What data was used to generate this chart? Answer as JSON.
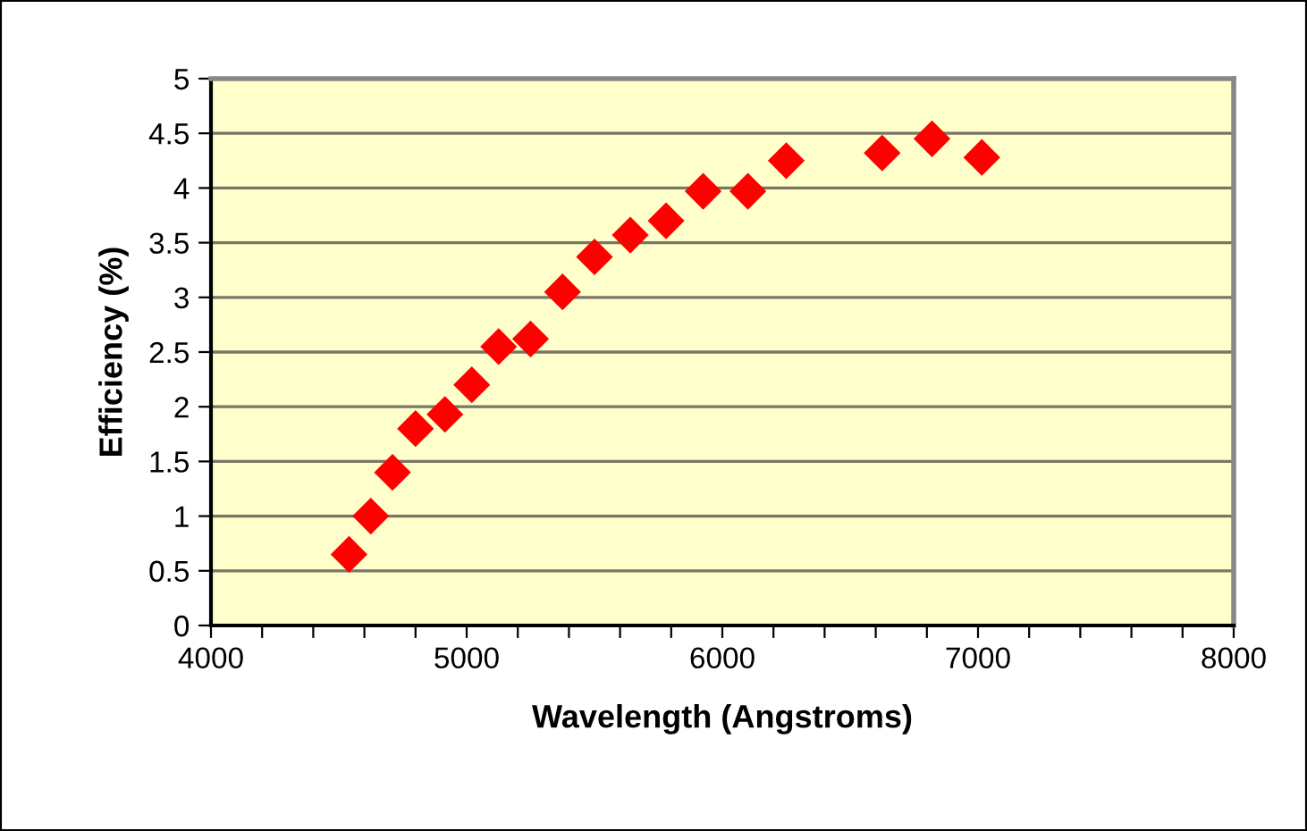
{
  "chart_data": {
    "type": "scatter",
    "xlabel": "Wavelength (Angstroms)",
    "ylabel": "Efficiency (%)",
    "x": [
      4540,
      4625,
      4710,
      4800,
      4915,
      5020,
      5125,
      5250,
      5375,
      5500,
      5640,
      5780,
      5925,
      6100,
      6250,
      6625,
      6820,
      7015
    ],
    "series": [
      {
        "color": "#ff0000",
        "values": [
          0.65,
          1.0,
          1.4,
          1.8,
          1.93,
          2.2,
          2.55,
          2.62,
          3.05,
          3.37,
          3.57,
          3.7,
          3.97,
          3.97,
          4.25,
          4.32,
          4.45,
          4.28
        ]
      }
    ],
    "marker": "diamond",
    "xlim": [
      4000,
      8000
    ],
    "ylim": [
      0,
      5
    ],
    "xticks": [
      4000,
      {
        "value": 4200,
        "label": null
      },
      {
        "value": 4400,
        "label": null
      },
      {
        "value": 4600,
        "label": null
      },
      {
        "value": 4800,
        "label": null
      },
      5000,
      {
        "value": 5200,
        "label": null
      },
      {
        "value": 5400,
        "label": null
      },
      {
        "value": 5600,
        "label": null
      },
      {
        "value": 5800,
        "label": null
      },
      6000,
      {
        "value": 6200,
        "label": null
      },
      {
        "value": 6400,
        "label": null
      },
      {
        "value": 6600,
        "label": null
      },
      {
        "value": 6800,
        "label": null
      },
      7000,
      {
        "value": 7200,
        "label": null
      },
      {
        "value": 7400,
        "label": null
      },
      {
        "value": 7600,
        "label": null
      },
      {
        "value": 7800,
        "label": null
      },
      8000
    ],
    "yticks": [
      0,
      0.5,
      1,
      1.5,
      2,
      2.5,
      3,
      3.5,
      4,
      4.5,
      5
    ],
    "grid": "y",
    "legend": false
  }
}
